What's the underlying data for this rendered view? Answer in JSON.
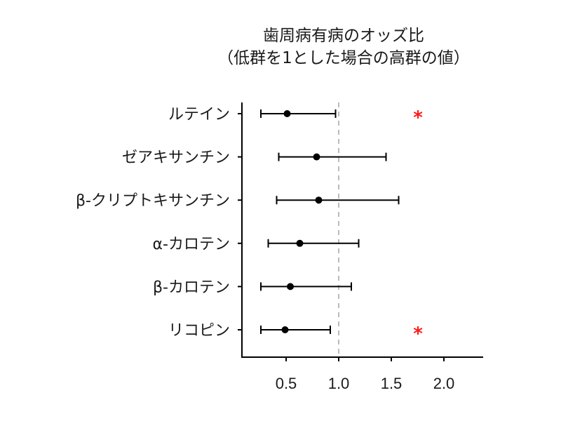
{
  "chart_data": {
    "type": "forest",
    "title": "歯周病有病のオッズ比",
    "subtitle": "（低群を1とした場合の高群の値）",
    "xlabel": "",
    "ylabel": "",
    "xlim": [
      0.0,
      2.3
    ],
    "xticks": [
      0.5,
      1.0,
      1.5,
      2.0
    ],
    "xtick_labels": [
      "0.5",
      "1.0",
      "1.5",
      "2.0"
    ],
    "reference_line": 1.0,
    "grid": false,
    "categories": [
      "ルテイン",
      "ゼアキサンチン",
      "β-クリプトキサンチン",
      "α-カロテン",
      "β-カロテン",
      "リコピン"
    ],
    "series": [
      {
        "name": "odds_ratio",
        "values": [
          0.51,
          0.79,
          0.81,
          0.63,
          0.54,
          0.49
        ],
        "ci_low": [
          0.26,
          0.43,
          0.41,
          0.33,
          0.26,
          0.26
        ],
        "ci_high": [
          0.97,
          1.45,
          1.57,
          1.19,
          1.12,
          0.92
        ]
      }
    ],
    "significance": [
      true,
      false,
      false,
      false,
      false,
      true
    ],
    "annotation_symbol": "*",
    "colors": {
      "point": "#000000",
      "reference_line": "#bbbbbb",
      "significance": "#ff1a1a"
    }
  }
}
